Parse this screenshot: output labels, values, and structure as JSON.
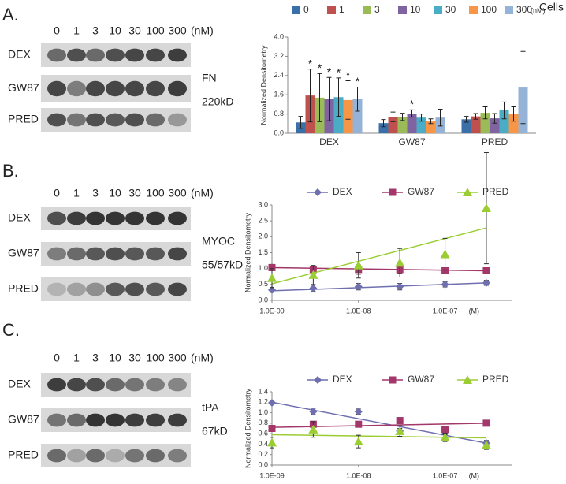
{
  "blots": [
    {
      "letter": "A.",
      "concentrations": [
        "0",
        "1",
        "3",
        "10",
        "30",
        "100",
        "300"
      ],
      "unit": "(nM)",
      "rows": [
        "DEX",
        "GW87",
        "PRED"
      ],
      "protein": "FN",
      "size": "220kD"
    },
    {
      "letter": "B.",
      "concentrations": [
        "0",
        "1",
        "3",
        "10",
        "30",
        "100",
        "300"
      ],
      "unit": "(nM)",
      "rows": [
        "DEX",
        "GW87",
        "PRED"
      ],
      "protein": "MYOC",
      "size": "55/57kD"
    },
    {
      "letter": "C.",
      "concentrations": [
        "0",
        "1",
        "3",
        "10",
        "30",
        "100",
        "300"
      ],
      "unit": "(nM)",
      "rows": [
        "DEX",
        "GW87",
        "PRED"
      ],
      "protein": "tPA",
      "size": "67kD"
    }
  ],
  "chart_data": [
    {
      "type": "bar",
      "title": "Cells",
      "ylabel": "Normalized Densitometry",
      "legend_unit": "(nM)",
      "categories": [
        "DEX",
        "GW87",
        "PRED"
      ],
      "series": [
        {
          "name": "0",
          "color": "#3b6fa8",
          "values": [
            0.45,
            0.42,
            0.58
          ],
          "errors": [
            0.25,
            0.15,
            0.12
          ]
        },
        {
          "name": "1",
          "color": "#c0504d",
          "values": [
            1.57,
            0.68,
            0.7
          ],
          "errors": [
            1.1,
            0.2,
            0.12
          ]
        },
        {
          "name": "3",
          "color": "#9bbb59",
          "values": [
            1.48,
            0.68,
            0.85
          ],
          "errors": [
            1.0,
            0.15,
            0.25
          ]
        },
        {
          "name": "10",
          "color": "#8064a2",
          "values": [
            1.42,
            0.82,
            0.62
          ],
          "errors": [
            0.9,
            0.15,
            0.2
          ]
        },
        {
          "name": "30",
          "color": "#4bacc6",
          "values": [
            1.5,
            0.65,
            0.95
          ],
          "errors": [
            0.8,
            0.15,
            0.35
          ]
        },
        {
          "name": "100",
          "color": "#f79646",
          "values": [
            1.38,
            0.5,
            0.8
          ],
          "errors": [
            0.8,
            0.1,
            0.3
          ]
        },
        {
          "name": "300",
          "color": "#95b3d7",
          "values": [
            1.42,
            0.65,
            1.9
          ],
          "errors": [
            0.5,
            0.35,
            1.5
          ]
        }
      ],
      "annotations": [
        {
          "text": "*",
          "series": 1,
          "category": 0
        },
        {
          "text": "*",
          "series": 2,
          "category": 0
        },
        {
          "text": "*",
          "series": 3,
          "category": 0
        },
        {
          "text": "*",
          "series": 4,
          "category": 0
        },
        {
          "text": "*",
          "series": 5,
          "category": 0
        },
        {
          "text": "*",
          "series": 6,
          "category": 0
        },
        {
          "text": "*",
          "series": 3,
          "category": 1
        }
      ],
      "ylim": [
        0,
        4
      ],
      "yticks": [
        {
          "value": 0,
          "label": "0.0"
        },
        0.8,
        1.6,
        2.4,
        3.2,
        {
          "value": 4,
          "label": "4.0"
        }
      ],
      "grid": false
    },
    {
      "type": "line",
      "ylabel": "Normalized Densitometry",
      "xunit": "(M)",
      "log_x": true,
      "x": [
        1e-09,
        3e-09,
        1e-08,
        3e-08,
        1e-07,
        3e-07
      ],
      "series": [
        {
          "name": "DEX",
          "color": "#6f6fb0",
          "marker": "diamond",
          "values": [
            0.33,
            0.38,
            0.43,
            0.43,
            0.5,
            0.55
          ],
          "errors": [
            0.08,
            0.1,
            0.1,
            0.1,
            0.08,
            0.08
          ],
          "trendline": [
            0.3,
            0.55
          ]
        },
        {
          "name": "GW87",
          "color": "#a3376a",
          "marker": "square",
          "values": [
            1.03,
            0.97,
            0.97,
            0.97,
            0.93,
            0.93
          ],
          "errors": [
            0.1,
            0.12,
            0.15,
            0.12,
            0.1,
            0.1
          ],
          "trendline": [
            1.03,
            0.93
          ]
        },
        {
          "name": "PRED",
          "color": "#9acd32",
          "marker": "triangle",
          "values": [
            0.7,
            0.8,
            1.1,
            1.18,
            1.45,
            2.9
          ],
          "errors": [
            0.3,
            0.3,
            0.4,
            0.45,
            0.5,
            1.75
          ],
          "trendline": [
            0.52,
            2.28
          ]
        }
      ],
      "xlim": [
        1e-09,
        6e-07
      ],
      "xticks": [
        {
          "value": 1e-09,
          "label": "1.0E-09"
        },
        {
          "value": 1e-08,
          "label": "1.0E-08"
        },
        {
          "value": 1e-07,
          "label": "1.0E-07"
        }
      ],
      "ylim": [
        0,
        3
      ],
      "yticks": [
        {
          "value": 0,
          "label": "0.0"
        },
        0.5,
        {
          "value": 1,
          "label": "1.0"
        },
        1.5,
        {
          "value": 2,
          "label": "2.0"
        },
        2.5,
        {
          "value": 3,
          "label": "3.0"
        }
      ],
      "grid": false
    },
    {
      "type": "line",
      "ylabel": "Normalized Densitometry",
      "xunit": "(M)",
      "log_x": true,
      "x": [
        1e-09,
        3e-09,
        1e-08,
        3e-08,
        1e-07,
        3e-07
      ],
      "series": [
        {
          "name": "DEX",
          "color": "#6f6fb0",
          "marker": "diamond",
          "values": [
            1.19,
            1.02,
            1.02,
            0.65,
            0.63,
            0.42
          ],
          "errors": [
            0.03,
            0.05,
            0.05,
            0.05,
            0.05,
            0.05
          ],
          "trendline": [
            1.2,
            0.42
          ]
        },
        {
          "name": "GW87",
          "color": "#a3376a",
          "marker": "square",
          "values": [
            0.7,
            0.78,
            0.78,
            0.85,
            0.68,
            0.8
          ],
          "errors": [
            0.05,
            0.05,
            0.05,
            0.05,
            0.05,
            0.05
          ],
          "trendline": [
            0.72,
            0.8
          ]
        },
        {
          "name": "PRED",
          "color": "#9acd32",
          "marker": "triangle",
          "values": [
            0.43,
            0.68,
            0.45,
            0.65,
            0.53,
            0.38
          ],
          "errors": [
            0.1,
            0.15,
            0.12,
            0.1,
            0.08,
            0.08
          ],
          "trendline": [
            0.58,
            0.52
          ]
        }
      ],
      "xlim": [
        1e-09,
        6e-07
      ],
      "xticks": [
        {
          "value": 1e-09,
          "label": "1.0E-09"
        },
        {
          "value": 1e-08,
          "label": "1.0E-08"
        },
        {
          "value": 1e-07,
          "label": "1.0E-07"
        }
      ],
      "ylim": [
        0,
        1.4
      ],
      "yticks": [
        {
          "value": 0,
          "label": "0.0"
        },
        0.2,
        0.4,
        0.6,
        0.8,
        {
          "value": 1,
          "label": "1.0"
        },
        1.2,
        1.4
      ],
      "grid": false
    }
  ]
}
